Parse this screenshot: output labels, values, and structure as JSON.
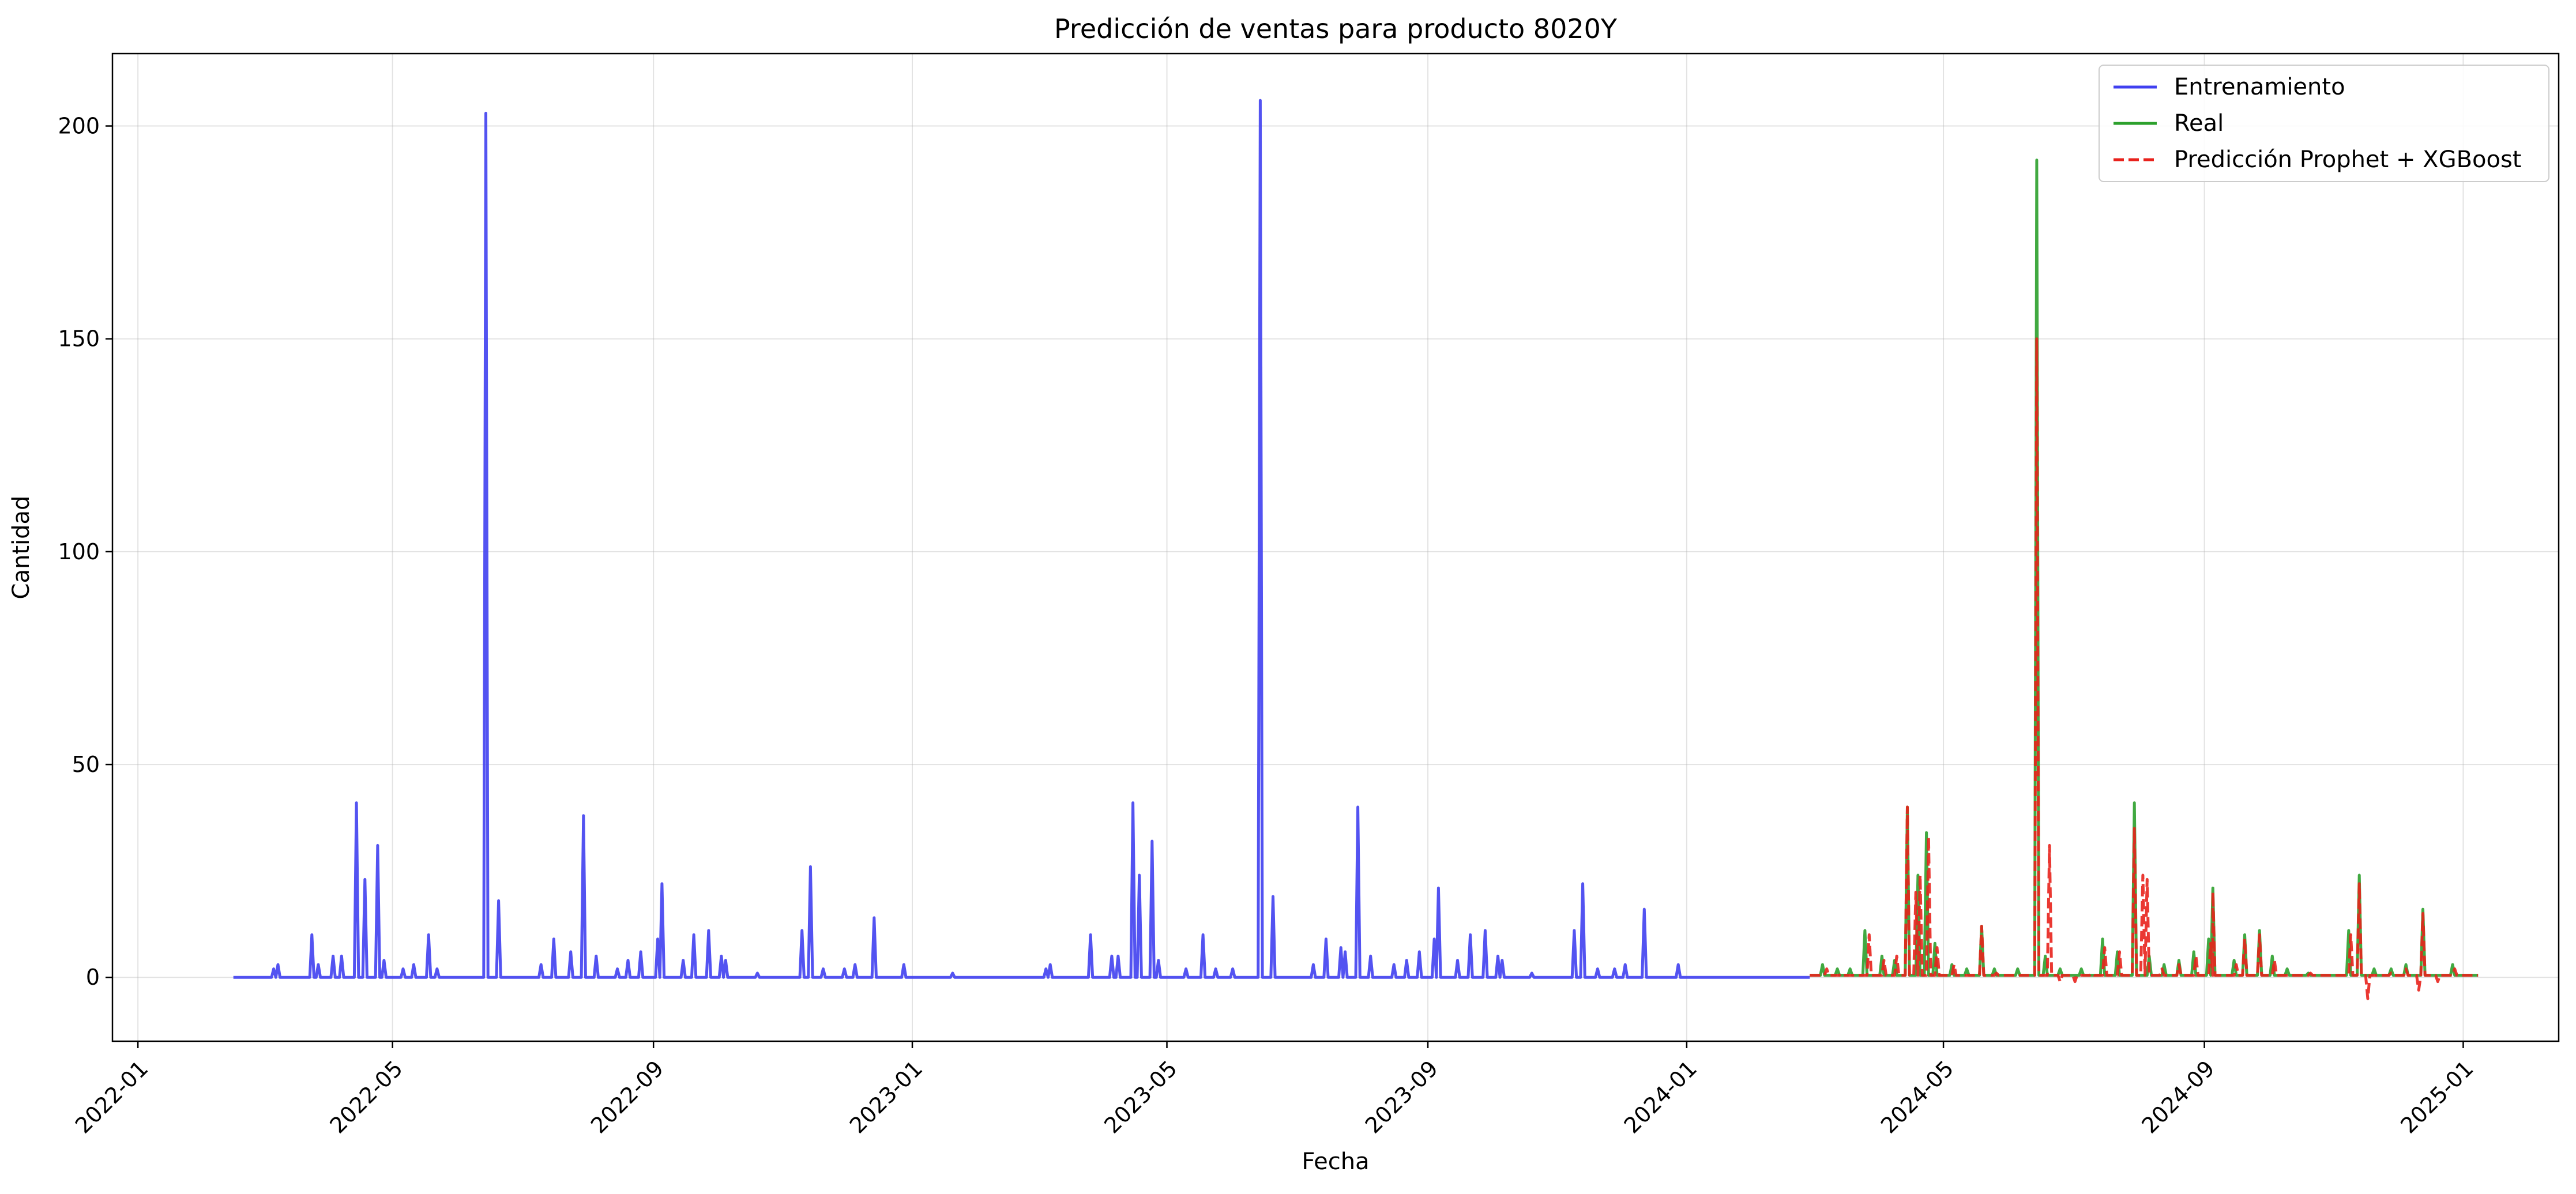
{
  "chart_data": {
    "type": "line",
    "title": "Predicción de ventas para producto 8020Y",
    "xlabel": "Fecha",
    "ylabel": "Cantidad",
    "xlim": [
      "2021-12-20",
      "2025-02-15"
    ],
    "ylim": [
      -15,
      217
    ],
    "grid": true,
    "legend_position": "top-right",
    "x_ticks": [
      "2022-01",
      "2022-05",
      "2022-09",
      "2023-01",
      "2023-05",
      "2023-09",
      "2024-01",
      "2024-05",
      "2024-09",
      "2025-01"
    ],
    "y_ticks": [
      0,
      50,
      100,
      150,
      200
    ],
    "series": [
      {
        "name": "Entrenamiento",
        "color": "#4040f0",
        "style": "solid",
        "start": "2022-02-15",
        "end": "2024-02-28",
        "baseline": 0,
        "peaks": [
          [
            "2022-03-06",
            2
          ],
          [
            "2022-03-08",
            3
          ],
          [
            "2022-03-24",
            10
          ],
          [
            "2022-03-27",
            3
          ],
          [
            "2022-04-03",
            5
          ],
          [
            "2022-04-07",
            5
          ],
          [
            "2022-04-14",
            41
          ],
          [
            "2022-04-18",
            23
          ],
          [
            "2022-04-24",
            31
          ],
          [
            "2022-04-27",
            4
          ],
          [
            "2022-05-06",
            2
          ],
          [
            "2022-05-11",
            3
          ],
          [
            "2022-05-18",
            10
          ],
          [
            "2022-05-22",
            2
          ],
          [
            "2022-06-14",
            203
          ],
          [
            "2022-06-20",
            18
          ],
          [
            "2022-07-10",
            3
          ],
          [
            "2022-07-16",
            9
          ],
          [
            "2022-07-24",
            6
          ],
          [
            "2022-07-30",
            38
          ],
          [
            "2022-08-05",
            5
          ],
          [
            "2022-08-15",
            2
          ],
          [
            "2022-08-20",
            4
          ],
          [
            "2022-08-26",
            6
          ],
          [
            "2022-09-03",
            9
          ],
          [
            "2022-09-05",
            22
          ],
          [
            "2022-09-15",
            4
          ],
          [
            "2022-09-20",
            10
          ],
          [
            "2022-09-27",
            11
          ],
          [
            "2022-10-03",
            5
          ],
          [
            "2022-10-05",
            4
          ],
          [
            "2022-10-20",
            1
          ],
          [
            "2022-11-10",
            11
          ],
          [
            "2022-11-14",
            26
          ],
          [
            "2022-11-20",
            2
          ],
          [
            "2022-11-30",
            2
          ],
          [
            "2022-12-05",
            3
          ],
          [
            "2022-12-14",
            14
          ],
          [
            "2022-12-28",
            3
          ],
          [
            "2023-01-20",
            1
          ],
          [
            "2023-03-05",
            2
          ],
          [
            "2023-03-07",
            3
          ],
          [
            "2023-03-26",
            10
          ],
          [
            "2023-04-05",
            5
          ],
          [
            "2023-04-08",
            5
          ],
          [
            "2023-04-15",
            41
          ],
          [
            "2023-04-18",
            24
          ],
          [
            "2023-04-24",
            32
          ],
          [
            "2023-04-27",
            4
          ],
          [
            "2023-05-10",
            2
          ],
          [
            "2023-05-18",
            10
          ],
          [
            "2023-05-24",
            2
          ],
          [
            "2023-06-01",
            2
          ],
          [
            "2023-06-14",
            206
          ],
          [
            "2023-06-20",
            19
          ],
          [
            "2023-07-09",
            3
          ],
          [
            "2023-07-15",
            9
          ],
          [
            "2023-07-22",
            7
          ],
          [
            "2023-07-24",
            6
          ],
          [
            "2023-07-30",
            40
          ],
          [
            "2023-08-05",
            5
          ],
          [
            "2023-08-16",
            3
          ],
          [
            "2023-08-22",
            4
          ],
          [
            "2023-08-28",
            6
          ],
          [
            "2023-09-04",
            9
          ],
          [
            "2023-09-06",
            21
          ],
          [
            "2023-09-15",
            4
          ],
          [
            "2023-09-21",
            10
          ],
          [
            "2023-09-28",
            11
          ],
          [
            "2023-10-04",
            5
          ],
          [
            "2023-10-06",
            4
          ],
          [
            "2023-10-20",
            1
          ],
          [
            "2023-11-09",
            11
          ],
          [
            "2023-11-13",
            22
          ],
          [
            "2023-11-20",
            2
          ],
          [
            "2023-11-28",
            2
          ],
          [
            "2023-12-03",
            3
          ],
          [
            "2023-12-12",
            16
          ],
          [
            "2023-12-28",
            3
          ]
        ]
      },
      {
        "name": "Real",
        "color": "#2ca02c",
        "style": "solid",
        "start": "2024-02-28",
        "end": "2025-01-08",
        "baseline": 0.5,
        "peaks": [
          [
            "2024-03-05",
            3
          ],
          [
            "2024-03-12",
            2
          ],
          [
            "2024-03-18",
            2
          ],
          [
            "2024-03-25",
            11
          ],
          [
            "2024-04-02",
            5
          ],
          [
            "2024-04-08",
            4
          ],
          [
            "2024-04-14",
            40
          ],
          [
            "2024-04-19",
            24
          ],
          [
            "2024-04-23",
            34
          ],
          [
            "2024-04-27",
            8
          ],
          [
            "2024-05-05",
            3
          ],
          [
            "2024-05-12",
            2
          ],
          [
            "2024-05-19",
            12
          ],
          [
            "2024-05-25",
            2
          ],
          [
            "2024-06-05",
            2
          ],
          [
            "2024-06-14",
            192
          ],
          [
            "2024-06-18",
            5
          ],
          [
            "2024-06-25",
            2
          ],
          [
            "2024-07-05",
            2
          ],
          [
            "2024-07-15",
            9
          ],
          [
            "2024-07-22",
            6
          ],
          [
            "2024-07-30",
            41
          ],
          [
            "2024-08-06",
            5
          ],
          [
            "2024-08-13",
            3
          ],
          [
            "2024-08-20",
            4
          ],
          [
            "2024-08-27",
            6
          ],
          [
            "2024-09-03",
            9
          ],
          [
            "2024-09-05",
            21
          ],
          [
            "2024-09-15",
            4
          ],
          [
            "2024-09-20",
            10
          ],
          [
            "2024-09-27",
            11
          ],
          [
            "2024-10-03",
            5
          ],
          [
            "2024-10-10",
            2
          ],
          [
            "2024-10-20",
            1
          ],
          [
            "2024-11-08",
            11
          ],
          [
            "2024-11-13",
            24
          ],
          [
            "2024-11-20",
            2
          ],
          [
            "2024-11-28",
            2
          ],
          [
            "2024-12-05",
            3
          ],
          [
            "2024-12-13",
            16
          ],
          [
            "2024-12-27",
            3
          ]
        ]
      },
      {
        "name": "Predicción Prophet + XGBoost",
        "color": "#e8221c",
        "style": "dashed",
        "start": "2024-02-28",
        "end": "2025-01-08",
        "baseline": 0.5,
        "peaks": [
          [
            "2024-03-07",
            2
          ],
          [
            "2024-03-14",
            1
          ],
          [
            "2024-03-27",
            10
          ],
          [
            "2024-04-03",
            4
          ],
          [
            "2024-04-09",
            5
          ],
          [
            "2024-04-14",
            40
          ],
          [
            "2024-04-18",
            20
          ],
          [
            "2024-04-20",
            24
          ],
          [
            "2024-04-24",
            33
          ],
          [
            "2024-04-28",
            7
          ],
          [
            "2024-05-06",
            3
          ],
          [
            "2024-05-19",
            12
          ],
          [
            "2024-05-26",
            1
          ],
          [
            "2024-06-14",
            150
          ],
          [
            "2024-06-20",
            31
          ],
          [
            "2024-06-25",
            -1
          ],
          [
            "2024-07-02",
            -1
          ],
          [
            "2024-07-10",
            1
          ],
          [
            "2024-07-16",
            7
          ],
          [
            "2024-07-23",
            6
          ],
          [
            "2024-07-30",
            35
          ],
          [
            "2024-08-03",
            24
          ],
          [
            "2024-08-05",
            23
          ],
          [
            "2024-08-12",
            2
          ],
          [
            "2024-08-20",
            3
          ],
          [
            "2024-08-28",
            5
          ],
          [
            "2024-09-04",
            8
          ],
          [
            "2024-09-05",
            20
          ],
          [
            "2024-09-16",
            3
          ],
          [
            "2024-09-20",
            9
          ],
          [
            "2024-09-27",
            10
          ],
          [
            "2024-10-04",
            4
          ],
          [
            "2024-10-21",
            1
          ],
          [
            "2024-11-09",
            10
          ],
          [
            "2024-11-13",
            22
          ],
          [
            "2024-11-17",
            -5
          ],
          [
            "2024-11-28",
            1
          ],
          [
            "2024-12-05",
            2
          ],
          [
            "2024-12-11",
            -3
          ],
          [
            "2024-12-13",
            15
          ],
          [
            "2024-12-20",
            -1
          ],
          [
            "2024-12-28",
            2
          ]
        ]
      }
    ]
  }
}
